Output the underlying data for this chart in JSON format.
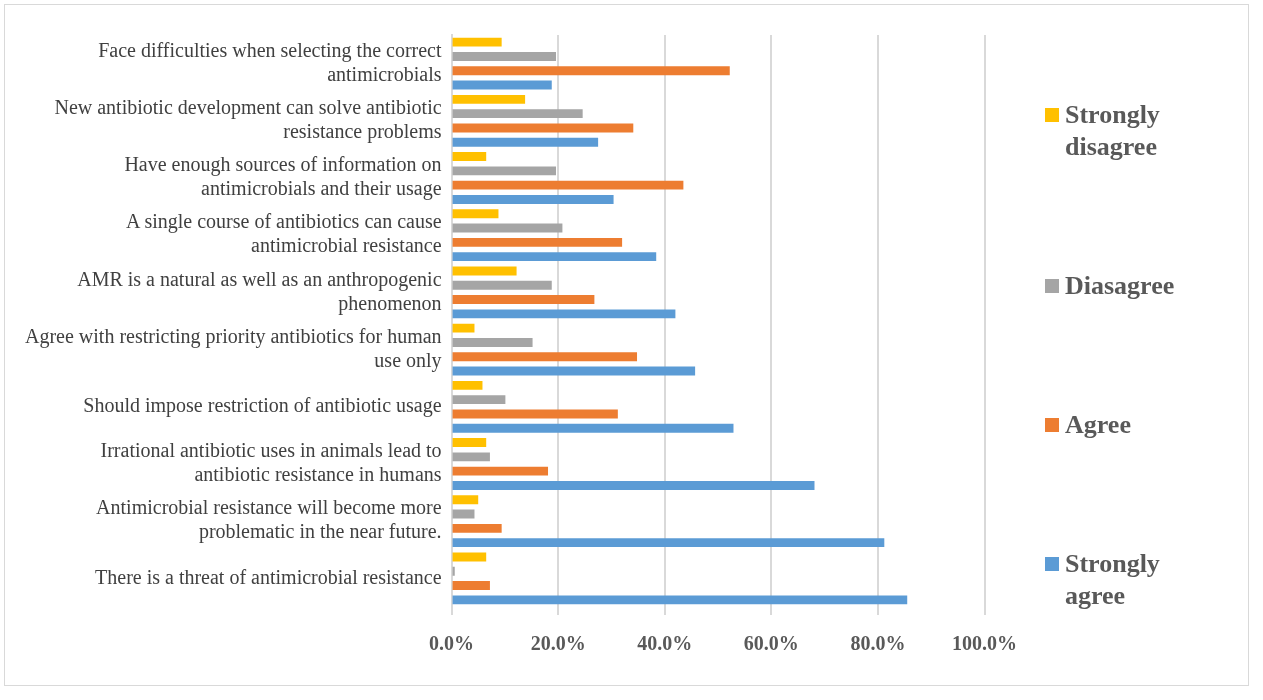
{
  "chart_data": {
    "type": "bar",
    "orientation": "horizontal",
    "categories": [
      "Face difficulties when selecting the correct antimicrobials",
      "New antibiotic development can solve antibiotic resistance problems",
      "Have enough sources of information on antimicrobials and their usage",
      "A single course of antibiotics can cause antimicrobial resistance",
      "AMR is a natural as well as an anthropogenic phenomenon",
      "Agree with restricting priority antibiotics for human use only",
      "Should impose restriction of antibiotic usage",
      "Irrational antibiotic uses in animals lead to antibiotic resistance in humans",
      "Antimicrobial resistance will become more problematic in the near future.",
      "There is a threat of antimicrobial resistance"
    ],
    "series": [
      {
        "name": "Strongly disagree",
        "color": "#ffc000",
        "values": [
          9.4,
          13.8,
          6.5,
          8.8,
          12.2,
          4.3,
          5.8,
          6.5,
          5.0,
          6.5
        ]
      },
      {
        "name": "Diasagree",
        "color": "#a5a5a5",
        "values": [
          19.6,
          24.6,
          19.6,
          20.8,
          18.8,
          15.2,
          10.1,
          7.2,
          4.3,
          0.6
        ]
      },
      {
        "name": "Agree",
        "color": "#ed7d31",
        "values": [
          52.2,
          34.1,
          43.5,
          32.0,
          26.8,
          34.8,
          31.2,
          18.1,
          9.4,
          7.2
        ]
      },
      {
        "name": "Strongly agree",
        "color": "#5b9bd5",
        "values": [
          18.8,
          27.5,
          30.4,
          38.4,
          42.0,
          45.7,
          52.9,
          68.1,
          81.2,
          85.5
        ]
      }
    ],
    "xlim": [
      0,
      100
    ],
    "xticks": [
      {
        "value": 0,
        "label": "0.0%"
      },
      {
        "value": 20,
        "label": "20.0%"
      },
      {
        "value": 40,
        "label": "40.0%"
      },
      {
        "value": 60,
        "label": "60.0%"
      },
      {
        "value": 80,
        "label": "80.0%"
      },
      {
        "value": 100,
        "label": "100.0%"
      }
    ],
    "grid": "x",
    "legend": "right"
  }
}
